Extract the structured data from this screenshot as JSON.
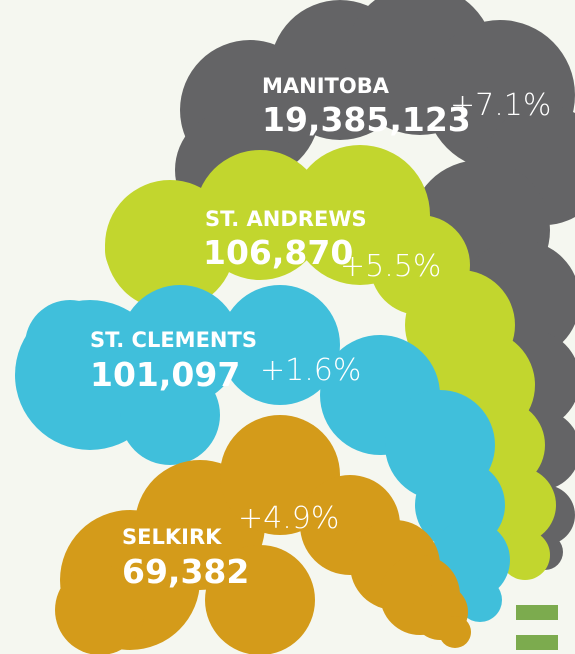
{
  "regions": [
    {
      "name": "MANITOBA",
      "population": "19,385,123",
      "change": "+7.1%"
    },
    {
      "name": "ST. ANDREWS",
      "population": "106,870",
      "change": "+5.5%"
    },
    {
      "name": "ST. CLEMENTS",
      "population": "101,097",
      "change": "+1.6%"
    },
    {
      "name": "SELKIRK",
      "population": "69,382",
      "change": "+4.9%"
    }
  ]
}
